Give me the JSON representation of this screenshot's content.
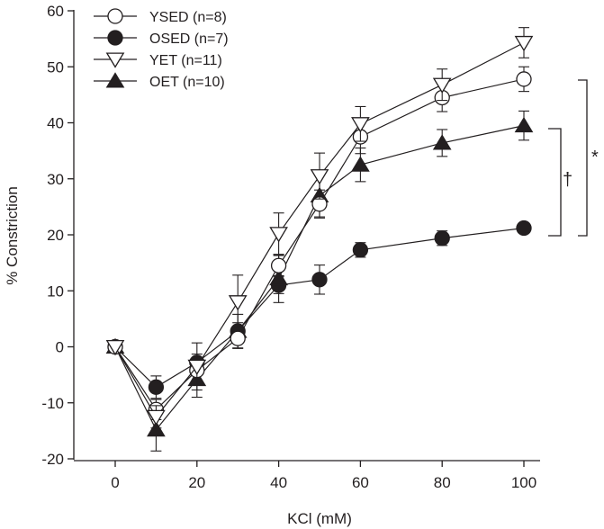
{
  "chart_data": {
    "type": "line",
    "xlabel": "KCl (mM)",
    "ylabel": "% Constriction",
    "x": [
      0,
      10,
      20,
      30,
      40,
      50,
      60,
      80,
      100
    ],
    "xticks": [
      0,
      20,
      40,
      60,
      80,
      100
    ],
    "yticks": [
      -20,
      -10,
      0,
      10,
      20,
      30,
      40,
      50,
      60
    ],
    "xlim": [
      -10,
      100
    ],
    "ylim": [
      -20,
      60
    ],
    "grid": false,
    "legend_position": "top-left",
    "series": [
      {
        "name": "YSED (n=8)",
        "marker": "open-circle",
        "values": [
          0,
          -11.2,
          -4.2,
          1.5,
          14.5,
          25.5,
          37.5,
          44.5,
          47.8
        ],
        "errors": [
          0,
          1.8,
          2.0,
          1.8,
          1.8,
          2.5,
          3.0,
          2.5,
          2.2
        ]
      },
      {
        "name": "OSED (n=7)",
        "marker": "filled-circle",
        "values": [
          0,
          -7.2,
          -2.8,
          2.8,
          11.0,
          12.0,
          17.3,
          19.4,
          21.2
        ],
        "errors": [
          0,
          2.0,
          1.5,
          1.5,
          1.5,
          2.6,
          1.3,
          1.3,
          0.8
        ]
      },
      {
        "name": "YET (n=11)",
        "marker": "open-triangle-down",
        "values": [
          0,
          -12.5,
          -3.5,
          8.0,
          20.2,
          30.5,
          39.8,
          46.8,
          54.3
        ],
        "errors": [
          0,
          2.0,
          4.2,
          4.8,
          3.7,
          4.1,
          3.1,
          2.8,
          2.7
        ]
      },
      {
        "name": "OET (n=10)",
        "marker": "filled-triangle-up",
        "values": [
          0,
          -14.8,
          -5.8,
          2.8,
          12.2,
          27.0,
          32.5,
          36.4,
          39.5
        ],
        "errors": [
          0,
          3.8,
          3.2,
          3.0,
          4.3,
          3.8,
          3.0,
          2.4,
          2.6
        ]
      }
    ],
    "annotations": {
      "dagger": "†",
      "asterisk": "*"
    }
  }
}
